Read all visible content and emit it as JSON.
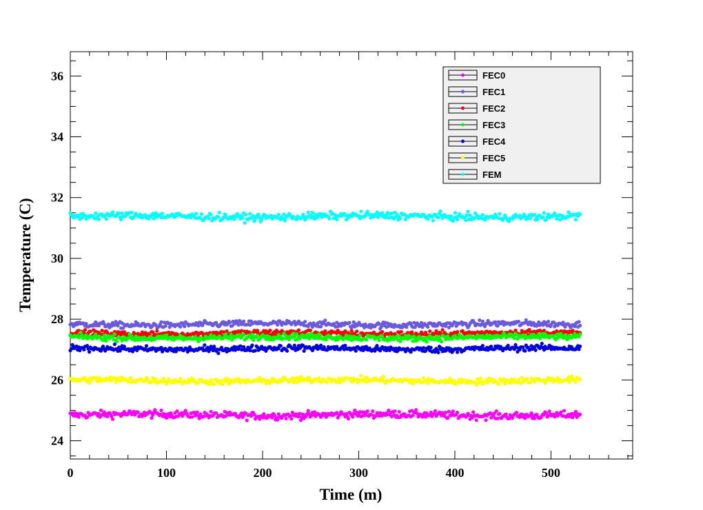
{
  "chart_data": {
    "type": "scatter",
    "xlabel": "Time (m)",
    "ylabel": "Temperature (C)",
    "xlim": [
      0,
      585
    ],
    "ylim": [
      23.4,
      36.8
    ],
    "x_ticks": [
      0,
      100,
      200,
      300,
      400,
      500
    ],
    "y_ticks": [
      24,
      26,
      28,
      30,
      32,
      34,
      36
    ],
    "x_range_of_samples": [
      0,
      531
    ],
    "legend_position": "top-right",
    "series": [
      {
        "name": "FEC0",
        "color": "#ff00ff",
        "mean": 24.85,
        "noise": 0.06
      },
      {
        "name": "FEC1",
        "color": "#6a5adf",
        "mean": 27.83,
        "noise": 0.05
      },
      {
        "name": "FEC2",
        "color": "#ff0000",
        "mean": 27.53,
        "noise": 0.05
      },
      {
        "name": "FEC3",
        "color": "#00ff00",
        "mean": 27.4,
        "noise": 0.05
      },
      {
        "name": "FEC4",
        "color": "#0000e0",
        "mean": 27.03,
        "noise": 0.05
      },
      {
        "name": "FEC5",
        "color": "#ffff00",
        "mean": 25.98,
        "noise": 0.05
      },
      {
        "name": "FEM",
        "color": "#00ffff",
        "mean": 31.38,
        "noise": 0.06
      }
    ]
  }
}
